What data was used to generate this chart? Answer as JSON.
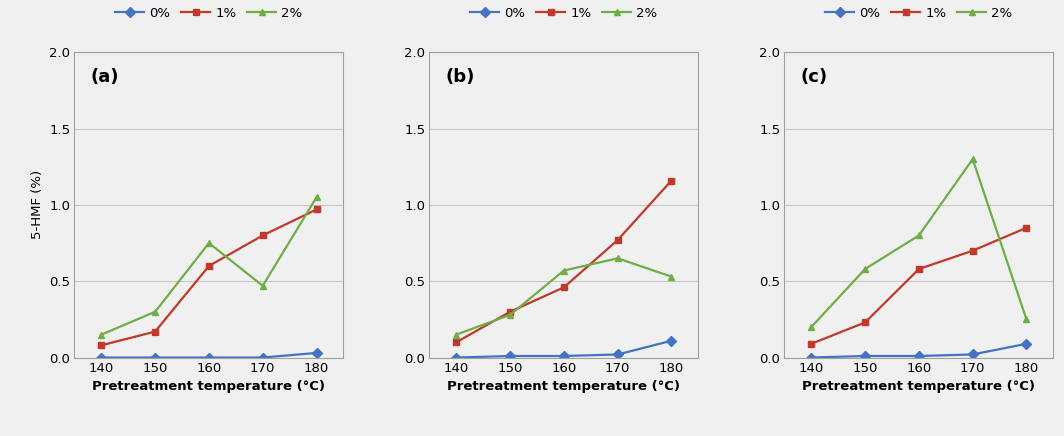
{
  "x": [
    140,
    150,
    160,
    170,
    180
  ],
  "panels": [
    {
      "label": "(a)",
      "series": {
        "0%": [
          0.0,
          0.0,
          0.0,
          0.0,
          0.03
        ],
        "1%": [
          0.08,
          0.17,
          0.6,
          0.8,
          0.97
        ],
        "2%": [
          0.15,
          0.3,
          0.75,
          0.47,
          1.05
        ]
      }
    },
    {
      "label": "(b)",
      "series": {
        "0%": [
          0.0,
          0.01,
          0.01,
          0.02,
          0.11
        ],
        "1%": [
          0.1,
          0.3,
          0.46,
          0.77,
          1.16
        ],
        "2%": [
          0.15,
          0.28,
          0.57,
          0.65,
          0.53
        ]
      }
    },
    {
      "label": "(c)",
      "series": {
        "0%": [
          0.0,
          0.01,
          0.01,
          0.02,
          0.09
        ],
        "1%": [
          0.09,
          0.23,
          0.58,
          0.7,
          0.85
        ],
        "2%": [
          0.2,
          0.58,
          0.8,
          1.3,
          0.25
        ]
      }
    }
  ],
  "colors": {
    "0%": "#4472c4",
    "1%": "#c0392b",
    "2%": "#70ad47"
  },
  "markers": {
    "0%": "D",
    "1%": "s",
    "2%": "^"
  },
  "ylabel": "5-HMF (%)",
  "xlabel": "Pretreatment temperature (°C)",
  "ylim": [
    0.0,
    2.0
  ],
  "yticks": [
    0.0,
    0.5,
    1.0,
    1.5,
    2.0
  ],
  "legend_labels": [
    "0%",
    "1%",
    "2%"
  ],
  "figure_facecolor": "#f0f0f0",
  "axes_facecolor": "#f0f0f0",
  "grid_color": "#c8c8c8",
  "spine_color": "#a0a0a0"
}
